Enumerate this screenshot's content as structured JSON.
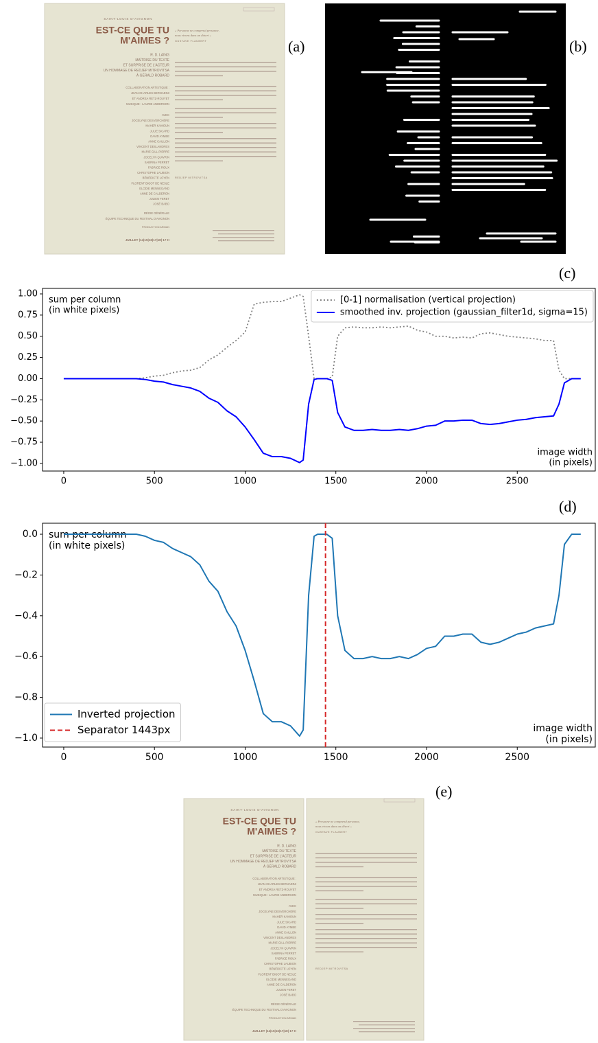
{
  "panels": [
    "(a)",
    "(b)",
    "(c)",
    "(d)",
    "(e)"
  ],
  "poster": {
    "venue": "SAINT-LOUIS D'AVIGNON",
    "title": [
      "EST-CE QUE TU",
      "M'AIMES ?"
    ],
    "credits": [
      "R. D. LAING",
      "MAÎTRISE DU TEXTE",
      "ET SURPRISE DE L'ACTEUR",
      "UN HOMMAGE DE REDJEP MITROVITSA",
      "À GÉRALD ROBARD"
    ],
    "collaboration": [
      "COLLABORATION ARTISTIQUE :",
      "JEAN-CHARLES BERNADINI",
      "ET ANDREA RETZ-ROUYET",
      "MUSIQUE : LAURIE ANDERSON"
    ],
    "cast_heading": "AVEC",
    "cast": [
      "JOCELYNE DESVERCHÈRE",
      "MAHER KAMOUN",
      "JULIE SICARD",
      "DAVID AYMBE",
      "ANNE CAILLON",
      "VINCENT DESLANDRES",
      "MARIE GILL-PIERRE",
      "JOCELYN QUIVRIN",
      "SABRINA PERRET",
      "FABRICE ROUX",
      "CHRISTOPHE LAUBION",
      "BÉNÉDICTE LOYEN",
      "FLORENT BIGOT DE NESLE",
      "ELODIE MENNEGAND",
      "ANNE DE CALDERON",
      "JULIEN FERET",
      "JOSÉ BABO"
    ],
    "footer": [
      "RÉGIE GÉNÉRALE",
      "ÉQUIPE TECHNIQUE DU FESTIVAL D'AVIGNON"
    ],
    "production": "PRODUCTION ARMAN",
    "date": "JUILLET |14|15|16|17|18| 17 H",
    "quote": [
      "« Personne ne comprend personne,",
      "nous vivons dans un désert »"
    ],
    "quote_author": "GUSTAVE FLAUBERT",
    "signature": "REDJEP MITROVITSA"
  },
  "chart_data": [
    {
      "type": "line",
      "ylabel": [
        "sum per column",
        "(in white pixels)"
      ],
      "xlabel": [
        "image width",
        "(in pixels)"
      ],
      "x": [
        0,
        100,
        200,
        300,
        400,
        450,
        500,
        550,
        600,
        650,
        700,
        750,
        800,
        850,
        900,
        950,
        1000,
        1050,
        1100,
        1150,
        1200,
        1250,
        1300,
        1320,
        1350,
        1380,
        1400,
        1450,
        1480,
        1510,
        1550,
        1600,
        1650,
        1700,
        1750,
        1800,
        1850,
        1900,
        1950,
        2000,
        2050,
        2100,
        2150,
        2200,
        2250,
        2300,
        2350,
        2400,
        2450,
        2500,
        2550,
        2600,
        2650,
        2700,
        2730,
        2760,
        2800,
        2850
      ],
      "series": [
        {
          "name": "[0-1] normalisation (vertical projection)",
          "color": "#808080",
          "linestyle": "dotted",
          "values": [
            0,
            0,
            0,
            0,
            0,
            0.01,
            0.03,
            0.04,
            0.07,
            0.09,
            0.1,
            0.13,
            0.22,
            0.28,
            0.37,
            0.45,
            0.55,
            0.88,
            0.9,
            0.91,
            0.91,
            0.95,
            0.99,
            0.97,
            0.5,
            0,
            0,
            0,
            0.02,
            0.5,
            0.6,
            0.61,
            0.6,
            0.6,
            0.61,
            0.6,
            0.61,
            0.62,
            0.57,
            0.55,
            0.5,
            0.5,
            0.48,
            0.49,
            0.48,
            0.53,
            0.54,
            0.52,
            0.5,
            0.49,
            0.48,
            0.47,
            0.45,
            0.45,
            0.1,
            0,
            0,
            0
          ]
        },
        {
          "name": "smoothed inv. projection (gaussian_filter1d, sigma=15)",
          "color": "#0000ff",
          "linestyle": "solid",
          "values": [
            0,
            0,
            0,
            0,
            0,
            -0.01,
            -0.03,
            -0.04,
            -0.07,
            -0.09,
            -0.11,
            -0.15,
            -0.23,
            -0.28,
            -0.38,
            -0.45,
            -0.57,
            -0.72,
            -0.88,
            -0.92,
            -0.92,
            -0.94,
            -0.99,
            -0.96,
            -0.3,
            -0.01,
            0,
            0,
            -0.02,
            -0.4,
            -0.57,
            -0.61,
            -0.61,
            -0.6,
            -0.61,
            -0.61,
            -0.6,
            -0.61,
            -0.59,
            -0.56,
            -0.55,
            -0.5,
            -0.5,
            -0.49,
            -0.49,
            -0.53,
            -0.54,
            -0.53,
            -0.51,
            -0.49,
            -0.48,
            -0.46,
            -0.45,
            -0.44,
            -0.3,
            -0.05,
            0,
            0
          ]
        }
      ],
      "xlim": [
        -117,
        2930
      ],
      "xticks": [
        0,
        500,
        1000,
        1500,
        2000,
        2500
      ],
      "ylim": [
        -1.09,
        1.065
      ],
      "yticks": [
        {
          "value": 1,
          "label": "1.00"
        },
        {
          "value": 0.75,
          "label": "0.75"
        },
        {
          "value": 0.5,
          "label": "0.50"
        },
        {
          "value": 0.25,
          "label": "0.25"
        },
        {
          "value": 0,
          "label": "0.00"
        },
        {
          "value": -0.25,
          "label": "−0.25"
        },
        {
          "value": -0.5,
          "label": "−0.50"
        },
        {
          "value": -0.75,
          "label": "−0.75"
        },
        {
          "value": -1,
          "label": "−1.00"
        }
      ],
      "legend": "upper right"
    },
    {
      "type": "line",
      "ylabel": [
        "sum per column",
        "(in white pixels)"
      ],
      "xlabel": [
        "image width",
        "(in pixels)"
      ],
      "x": [
        0,
        100,
        200,
        300,
        400,
        450,
        500,
        550,
        600,
        650,
        700,
        750,
        800,
        850,
        900,
        950,
        1000,
        1050,
        1100,
        1150,
        1200,
        1250,
        1300,
        1320,
        1350,
        1380,
        1400,
        1450,
        1480,
        1510,
        1550,
        1600,
        1650,
        1700,
        1750,
        1800,
        1850,
        1900,
        1950,
        2000,
        2050,
        2100,
        2150,
        2200,
        2250,
        2300,
        2350,
        2400,
        2450,
        2500,
        2550,
        2600,
        2650,
        2700,
        2730,
        2760,
        2800,
        2850
      ],
      "series": [
        {
          "name": "Inverted projection",
          "color": "#1f77b4",
          "linestyle": "solid",
          "values": [
            0,
            0,
            0,
            0,
            0,
            -0.01,
            -0.03,
            -0.04,
            -0.07,
            -0.09,
            -0.11,
            -0.15,
            -0.23,
            -0.28,
            -0.38,
            -0.45,
            -0.57,
            -0.72,
            -0.88,
            -0.92,
            -0.92,
            -0.94,
            -0.99,
            -0.96,
            -0.3,
            -0.01,
            0,
            0,
            -0.02,
            -0.4,
            -0.57,
            -0.61,
            -0.61,
            -0.6,
            -0.61,
            -0.61,
            -0.6,
            -0.61,
            -0.59,
            -0.56,
            -0.55,
            -0.5,
            -0.5,
            -0.49,
            -0.49,
            -0.53,
            -0.54,
            -0.53,
            -0.51,
            -0.49,
            -0.48,
            -0.46,
            -0.45,
            -0.44,
            -0.3,
            -0.05,
            0,
            0
          ]
        }
      ],
      "vline": {
        "x": 1443,
        "name": "Separator 1443px",
        "color": "#d62728",
        "linestyle": "dashed"
      },
      "xlim": [
        -117,
        2930
      ],
      "xticks": [
        0,
        500,
        1000,
        1500,
        2000,
        2500
      ],
      "ylim": [
        -1.044,
        0.054
      ],
      "yticks": [
        {
          "value": 0,
          "label": "0.0"
        },
        {
          "value": -0.2,
          "label": "−0.2"
        },
        {
          "value": -0.4,
          "label": "−0.4"
        },
        {
          "value": -0.6,
          "label": "−0.6"
        },
        {
          "value": -0.8,
          "label": "−0.8"
        },
        {
          "value": -1,
          "label": "−1.0"
        }
      ],
      "legend": "lower left"
    }
  ]
}
